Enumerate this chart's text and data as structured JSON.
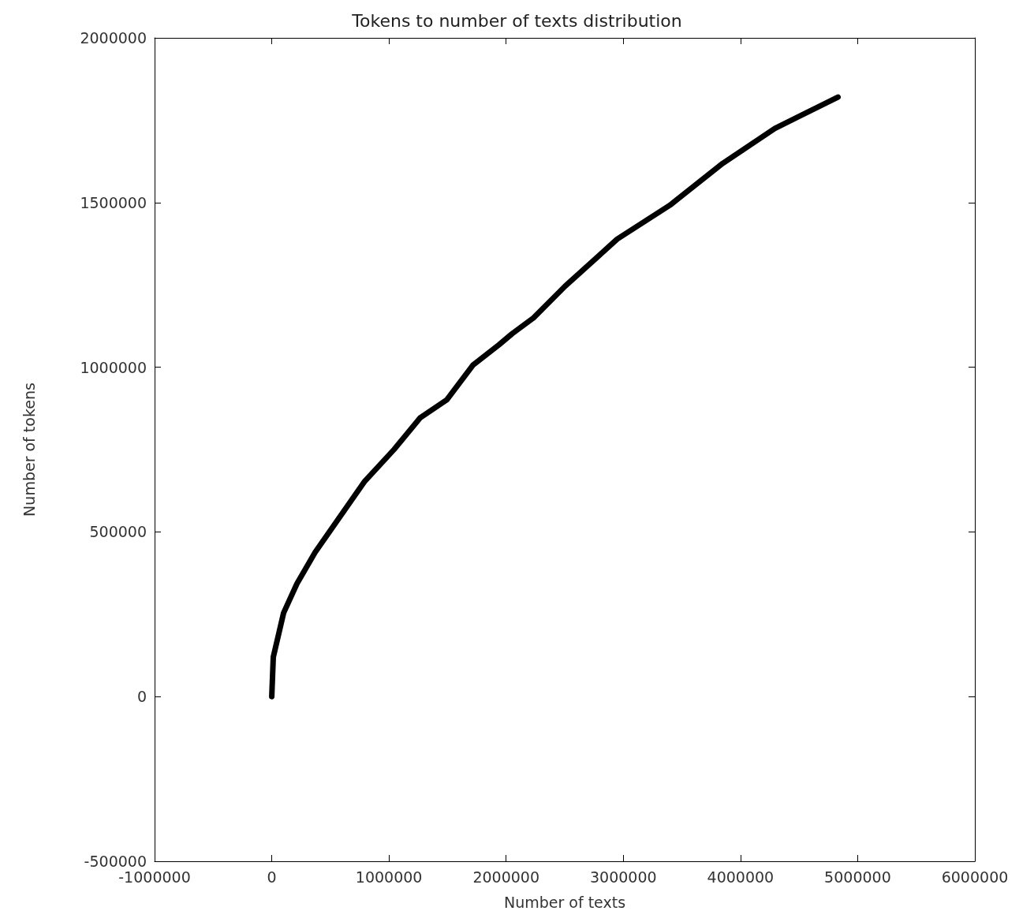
{
  "chart_data": {
    "type": "line",
    "title": "Tokens to number of texts distribution",
    "xlabel": "Number of texts",
    "ylabel": "Number of tokens",
    "xlim": [
      -1000000,
      6000000
    ],
    "xticks": [
      -1000000,
      0,
      1000000,
      2000000,
      3000000,
      4000000,
      5000000,
      6000000
    ],
    "ylim": [
      -500000,
      2000000
    ],
    "yticks": [
      -500000,
      0,
      500000,
      1000000,
      1500000,
      2000000
    ],
    "marker": "none",
    "line_style": "solid",
    "x": [
      0,
      13000,
      101000,
      215000,
      370000,
      592000,
      794000,
      1043000,
      1265000,
      1494000,
      1716000,
      1938000,
      2052000,
      2234000,
      2503000,
      2948000,
      3398000,
      3849000,
      4293000,
      4832000
    ],
    "series": [
      {
        "color": "#000000",
        "values": [
          0,
          120000,
          254000,
          343000,
          438000,
          551000,
          654000,
          750000,
          846000,
          901000,
          1006000,
          1068000,
          1102000,
          1150000,
          1246000,
          1389000,
          1492000,
          1619000,
          1725000,
          1820000
        ]
      }
    ]
  }
}
